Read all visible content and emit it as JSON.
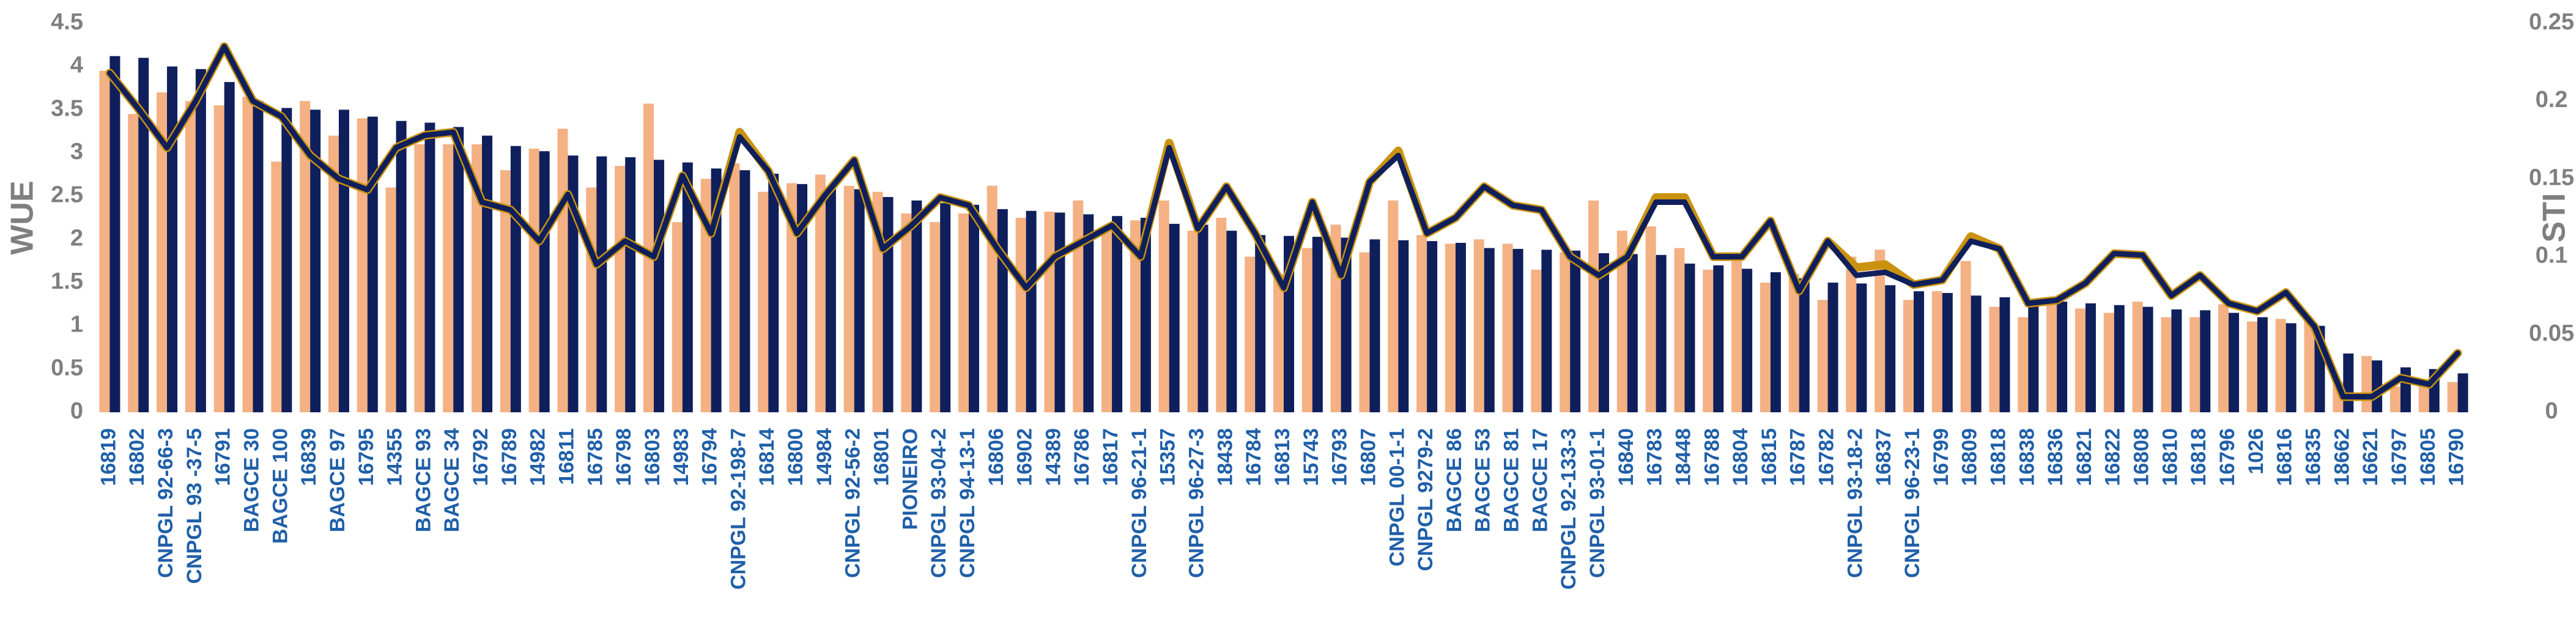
{
  "chart_data": {
    "type": "combo",
    "y_label": "WUE",
    "y2_label": "STI",
    "categories": [
      "16819",
      "16802",
      "CNPGL 92-66-3",
      "CNPGL 93 -37-5",
      "16791",
      "BAGCE 30",
      "BAGCE 100",
      "16839",
      "BAGCE 97",
      "16795",
      "14355",
      "BAGCE 93",
      "BAGCE 34",
      "16792",
      "16789",
      "14982",
      "16811",
      "16785",
      "16798",
      "16803",
      "14983",
      "16794",
      "CNPGL 92-198-7",
      "16814",
      "16800",
      "14984",
      "CNPGL 92-56-2",
      "16801",
      "PIONEIRO",
      "CNPGL 93-04-2",
      "CNPGL 94-13-1",
      "16806",
      "16902",
      "14389",
      "16786",
      "16817",
      "CNPGL 96-21-1",
      "15357",
      "CNPGL 96-27-3",
      "18438",
      "16784",
      "16813",
      "15743",
      "16793",
      "16807",
      "CNPGL 00-1-1",
      "CNPGL 9279-2",
      "BAGCE 86",
      "BAGCE 53",
      "BAGCE 81",
      "BAGCE 17",
      "CNPGL 92-133-3",
      "CNPGL 93-01-1",
      "16840",
      "16783",
      "18448",
      "16788",
      "16804",
      "16815",
      "16787",
      "16782",
      "CNPGL 93-18-2",
      "16837",
      "CNPGL 96-23-1",
      "16799",
      "16809",
      "16818",
      "16838",
      "16836",
      "16821",
      "16822",
      "16808",
      "16810",
      "16818",
      "16796",
      "1026",
      "16816",
      "16835",
      "18662",
      "16621",
      "16797",
      "16805",
      "16790"
    ],
    "series": [
      {
        "type": "bar",
        "color": "#f4b183",
        "values": [
          3.95,
          3.45,
          3.7,
          3.6,
          3.55,
          3.65,
          2.9,
          3.6,
          3.2,
          3.4,
          2.6,
          3.1,
          3.1,
          3.1,
          2.8,
          3.05,
          3.28,
          2.6,
          2.85,
          3.57,
          2.2,
          2.7,
          2.88,
          2.55,
          2.65,
          2.75,
          2.62,
          2.55,
          2.3,
          2.2,
          2.3,
          2.62,
          2.25,
          2.32,
          2.45,
          2.15,
          2.22,
          2.45,
          2.1,
          2.25,
          1.8,
          1.6,
          1.9,
          2.17,
          1.85,
          2.45,
          2.05,
          1.95,
          2.0,
          1.95,
          1.65,
          1.85,
          2.45,
          2.1,
          2.15,
          1.9,
          1.65,
          1.75,
          1.5,
          1.6,
          1.3,
          1.8,
          1.88,
          1.3,
          1.4,
          1.75,
          1.22,
          1.1,
          1.25,
          1.2,
          1.15,
          1.28,
          1.1,
          1.1,
          1.25,
          1.05,
          1.08,
          1.05,
          0.35,
          0.65,
          0.3,
          0.35,
          0.35
        ]
      },
      {
        "type": "bar",
        "color": "#0f1f5c",
        "values": [
          4.12,
          4.1,
          4.0,
          3.97,
          3.82,
          3.6,
          3.52,
          3.5,
          3.5,
          3.42,
          3.37,
          3.35,
          3.3,
          3.2,
          3.08,
          3.02,
          2.97,
          2.96,
          2.95,
          2.92,
          2.89,
          2.82,
          2.8,
          2.76,
          2.64,
          2.6,
          2.58,
          2.49,
          2.45,
          2.42,
          2.4,
          2.35,
          2.33,
          2.31,
          2.29,
          2.27,
          2.25,
          2.18,
          2.17,
          2.1,
          2.05,
          2.04,
          2.03,
          2.02,
          2.0,
          1.99,
          1.98,
          1.96,
          1.9,
          1.89,
          1.88,
          1.87,
          1.84,
          1.83,
          1.82,
          1.72,
          1.7,
          1.66,
          1.62,
          1.55,
          1.5,
          1.49,
          1.47,
          1.4,
          1.38,
          1.35,
          1.33,
          1.3,
          1.28,
          1.26,
          1.24,
          1.22,
          1.19,
          1.18,
          1.15,
          1.1,
          1.03,
          1.0,
          0.68,
          0.6,
          0.52,
          0.5,
          0.45
        ]
      },
      {
        "type": "line",
        "axis": "y2",
        "color": "#c9920e",
        "values": [
          0.218,
          0.195,
          0.17,
          0.2,
          0.235,
          0.2,
          0.19,
          0.165,
          0.15,
          0.143,
          0.17,
          0.178,
          0.18,
          0.135,
          0.13,
          0.11,
          0.14,
          0.095,
          0.11,
          0.1,
          0.152,
          0.115,
          0.18,
          0.155,
          0.115,
          0.14,
          0.162,
          0.105,
          0.12,
          0.138,
          0.133,
          0.105,
          0.08,
          0.1,
          0.11,
          0.12,
          0.1,
          0.173,
          0.118,
          0.145,
          0.115,
          0.08,
          0.135,
          0.088,
          0.148,
          0.168,
          0.115,
          0.125,
          0.145,
          0.133,
          0.13,
          0.1,
          0.088,
          0.1,
          0.138,
          0.138,
          0.1,
          0.1,
          0.123,
          0.078,
          0.11,
          0.093,
          0.095,
          0.082,
          0.085,
          0.113,
          0.105,
          0.07,
          0.072,
          0.083,
          0.102,
          0.101,
          0.075,
          0.088,
          0.07,
          0.065,
          0.077,
          0.055,
          0.01,
          0.01,
          0.022,
          0.018,
          0.038
        ]
      },
      {
        "type": "line",
        "axis": "y2",
        "color": "#0f1f5c",
        "values": [
          0.218,
          0.195,
          0.17,
          0.2,
          0.235,
          0.2,
          0.19,
          0.165,
          0.15,
          0.143,
          0.17,
          0.178,
          0.18,
          0.135,
          0.13,
          0.11,
          0.14,
          0.095,
          0.11,
          0.1,
          0.152,
          0.115,
          0.177,
          0.155,
          0.115,
          0.14,
          0.162,
          0.105,
          0.12,
          0.138,
          0.133,
          0.105,
          0.08,
          0.1,
          0.11,
          0.12,
          0.1,
          0.17,
          0.118,
          0.145,
          0.115,
          0.08,
          0.135,
          0.088,
          0.148,
          0.165,
          0.115,
          0.125,
          0.145,
          0.133,
          0.13,
          0.1,
          0.088,
          0.1,
          0.135,
          0.135,
          0.1,
          0.1,
          0.123,
          0.078,
          0.11,
          0.088,
          0.09,
          0.082,
          0.085,
          0.11,
          0.105,
          0.07,
          0.072,
          0.083,
          0.102,
          0.101,
          0.075,
          0.088,
          0.07,
          0.065,
          0.077,
          0.055,
          0.01,
          0.01,
          0.022,
          0.018,
          0.038
        ]
      }
    ],
    "ylim": [
      0,
      4.5
    ],
    "yticks": [
      0,
      0.5,
      1,
      1.5,
      2,
      2.5,
      3,
      3.5,
      4,
      4.5
    ],
    "y2lim": [
      0,
      0.25
    ],
    "y2ticks": [
      0,
      0.05,
      0.1,
      0.15,
      0.2,
      0.25
    ]
  }
}
